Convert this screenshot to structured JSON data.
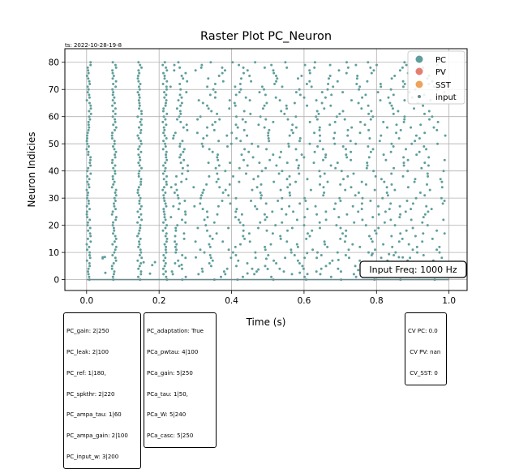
{
  "timestamp": "ts: 2022-10-28-19-8",
  "colors": {
    "PC": "#5f9e9b",
    "PV": "#e37f72",
    "SST": "#eda35b",
    "input": "#6a8a8f",
    "grid": "#b0b0b0"
  },
  "chart_data": {
    "type": "scatter",
    "title": "Raster Plot PC_Neuron",
    "xlabel": "Time (s)",
    "ylabel": "Neuron Indicies",
    "xlim": [
      -0.06,
      1.05
    ],
    "ylim": [
      -4,
      85
    ],
    "xticks": [
      "0.0",
      "0.2",
      "0.4",
      "0.6",
      "0.8",
      "1.0"
    ],
    "xtick_values": [
      0.0,
      0.2,
      0.4,
      0.6,
      0.8,
      1.0
    ],
    "yticks": [
      "0",
      "10",
      "20",
      "30",
      "40",
      "50",
      "60",
      "70",
      "80"
    ],
    "ytick_values": [
      0,
      10,
      20,
      30,
      40,
      50,
      60,
      70,
      80
    ],
    "grid": true,
    "legend_position": "top-right",
    "legend": [
      "PC",
      "PV",
      "SST",
      "input"
    ],
    "annotation": "Input Freq: 1000 Hz",
    "pc_neuron_count": 81,
    "input_row_y": 0,
    "first_spike_volley_times": [
      0.0,
      0.07,
      0.14,
      0.21
    ]
  },
  "params_left": [
    "PC_gain: 2|250",
    "PC_leak: 2|100",
    "PC_ref: 1|180,",
    "PC_spkthr: 2|220",
    "PC_ampa_tau: 1|60",
    "PC_ampa_gain: 2|100",
    "PC_input_w: 3|200"
  ],
  "params_mid": [
    "PC_adaptation: True",
    "PCa_pwtau: 4|100",
    "PCa_gain: 5|250",
    "PCa_tau: 1|50,",
    "PCa_W: 5|240",
    "PCa_casc: 5|250"
  ],
  "cv_stats": [
    "CV PC: 0.0",
    " CV PV: nan",
    " CV_SST: 0"
  ]
}
